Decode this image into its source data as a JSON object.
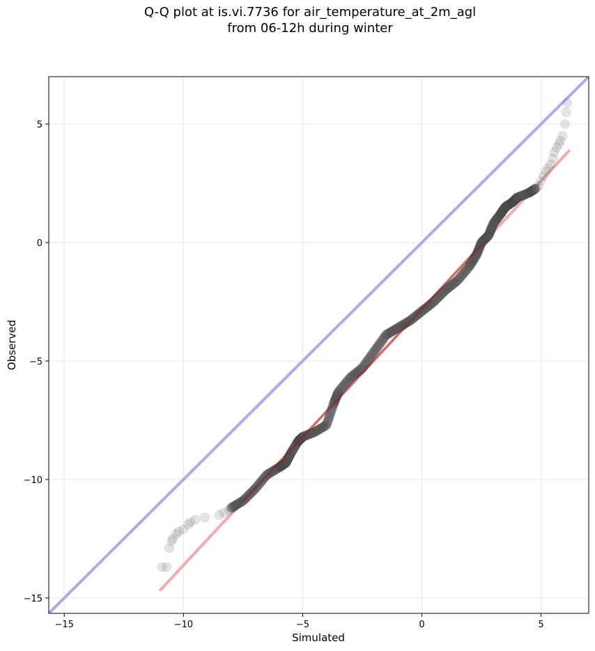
{
  "chart_data": {
    "type": "scatter",
    "title_line1": "Q-Q plot at is.vi.7736 for air_temperature_at_2m_agl",
    "title_line2": "from 06-12h during winter",
    "xlabel": "Simulated",
    "ylabel": "Observed",
    "xlim": [
      -15.65,
      7.0
    ],
    "ylim": [
      -15.65,
      7.0
    ],
    "xticks": [
      -15,
      -10,
      -5,
      0,
      5
    ],
    "yticks": [
      -15,
      -10,
      -5,
      0,
      5
    ],
    "xtick_labels": [
      "−15",
      "−10",
      "−5",
      "0",
      "5"
    ],
    "ytick_labels": [
      "−15",
      "−10",
      "−5",
      "0",
      "5"
    ],
    "grid": true,
    "colors": {
      "points": "#555555",
      "reference_line": "#a9a9f5",
      "fit_line": "#f5a9a9",
      "fit_line_dark": "#9b1a1a"
    },
    "reference_line": {
      "x": [
        -15.65,
        7.0
      ],
      "y": [
        -15.65,
        7.0
      ]
    },
    "fit_line": {
      "x": [
        -11.0,
        6.2
      ],
      "y": [
        -14.7,
        3.9
      ]
    },
    "tail_points": {
      "x": [
        -10.9,
        -10.7,
        -10.6,
        -10.5,
        -10.45,
        -10.3,
        -10.2,
        -10.0,
        -9.8,
        -9.7,
        -9.5,
        -9.1,
        -8.5,
        -8.3,
        -8.1,
        -7.9,
        4.9,
        5.0,
        5.1,
        5.2,
        5.3,
        5.4,
        5.5,
        5.55,
        5.65,
        5.75,
        5.8,
        5.9,
        6.0,
        6.05,
        6.1
      ],
      "y": [
        -13.7,
        -13.7,
        -12.9,
        -12.6,
        -12.5,
        -12.3,
        -12.2,
        -12.1,
        -11.9,
        -11.8,
        -11.7,
        -11.6,
        -11.5,
        -11.4,
        -11.3,
        -11.2,
        2.4,
        2.6,
        2.8,
        3.0,
        3.15,
        3.3,
        3.55,
        3.8,
        4.0,
        4.15,
        4.3,
        4.5,
        5.0,
        5.5,
        5.9
      ]
    },
    "quantile_curve": {
      "x": [
        -8.0,
        -7.5,
        -7.0,
        -6.5,
        -6.0,
        -5.7,
        -5.5,
        -5.2,
        -5.0,
        -4.5,
        -4.0,
        -3.7,
        -3.5,
        -3.0,
        -2.5,
        -2.0,
        -1.5,
        -1.0,
        -0.5,
        0.0,
        0.5,
        1.0,
        1.5,
        2.0,
        2.3,
        2.5,
        2.8,
        3.0,
        3.3,
        3.5,
        3.8,
        4.0,
        4.5,
        4.8
      ],
      "y": [
        -11.2,
        -10.9,
        -10.4,
        -9.8,
        -9.5,
        -9.3,
        -8.9,
        -8.4,
        -8.2,
        -8.0,
        -7.7,
        -6.8,
        -6.3,
        -5.7,
        -5.3,
        -4.6,
        -3.9,
        -3.6,
        -3.3,
        -2.9,
        -2.5,
        -2.0,
        -1.6,
        -1.0,
        -0.5,
        0.0,
        0.3,
        0.8,
        1.2,
        1.5,
        1.7,
        1.9,
        2.1,
        2.3
      ]
    }
  }
}
